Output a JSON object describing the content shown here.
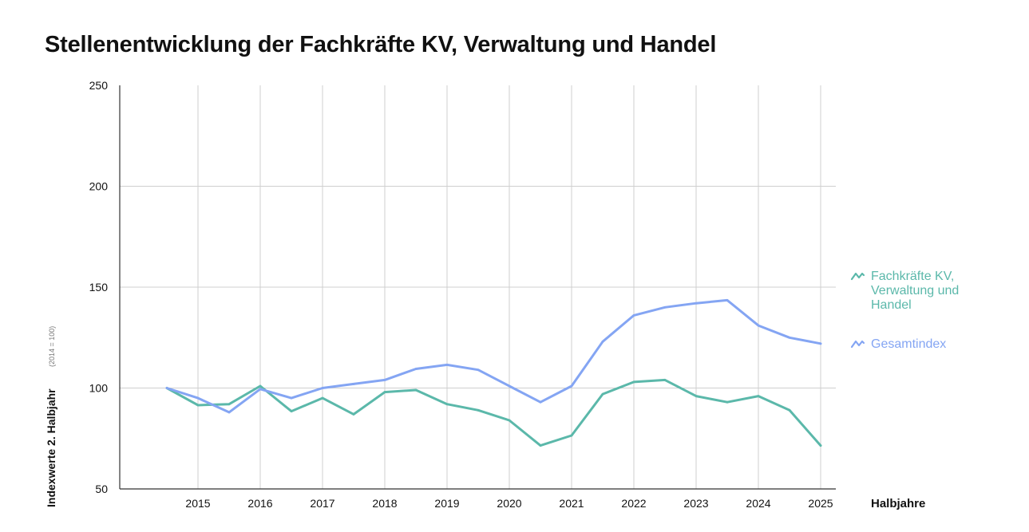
{
  "title": "Stellenentwicklung der Fachkräfte KV, Verwaltung und Handel",
  "chart_data": {
    "type": "line",
    "title": "Stellenentwicklung der Fachkräfte KV, Verwaltung und Handel",
    "xlabel": "Halbjahre",
    "ylabel": "Indexwerte 2. Halbjahr",
    "ylabel_note": "(2014 = 100)",
    "ylim": [
      50,
      250
    ],
    "yticks": [
      50,
      100,
      150,
      200,
      250
    ],
    "xticks": [
      "2015",
      "2016",
      "2017",
      "2018",
      "2019",
      "2020",
      "2021",
      "2022",
      "2023",
      "2024",
      "2025"
    ],
    "x": [
      "2014 H2",
      "2015 H1",
      "2015 H2",
      "2016 H1",
      "2016 H2",
      "2017 H1",
      "2017 H2",
      "2018 H1",
      "2018 H2",
      "2019 H1",
      "2019 H2",
      "2020 H1",
      "2020 H2",
      "2021 H1",
      "2021 H2",
      "2022 H1",
      "2022 H2",
      "2023 H1",
      "2023 H2",
      "2024 H1",
      "2024 H2",
      "2025 H1"
    ],
    "grid": true,
    "legend_position": "right",
    "series": [
      {
        "name": "Fachkräfte KV, Verwaltung und Handel",
        "legend_lines": [
          "Fachkräfte KV,",
          "Verwaltung und",
          "Handel"
        ],
        "color": "#5bb8aa",
        "values": [
          100,
          91.5,
          92,
          101,
          88.5,
          95,
          87,
          98,
          99,
          92,
          89,
          84,
          71.5,
          76.5,
          97,
          103,
          104,
          96,
          93,
          96,
          89,
          71.5
        ]
      },
      {
        "name": "Gesamtindex",
        "legend_lines": [
          "Gesamtindex"
        ],
        "color": "#84a5f3",
        "values": [
          100,
          95,
          88,
          99.5,
          95,
          100,
          102,
          104,
          109.5,
          111.5,
          109,
          101,
          93,
          101,
          123,
          136,
          140,
          142,
          143.5,
          131,
          125,
          122
        ]
      }
    ]
  }
}
